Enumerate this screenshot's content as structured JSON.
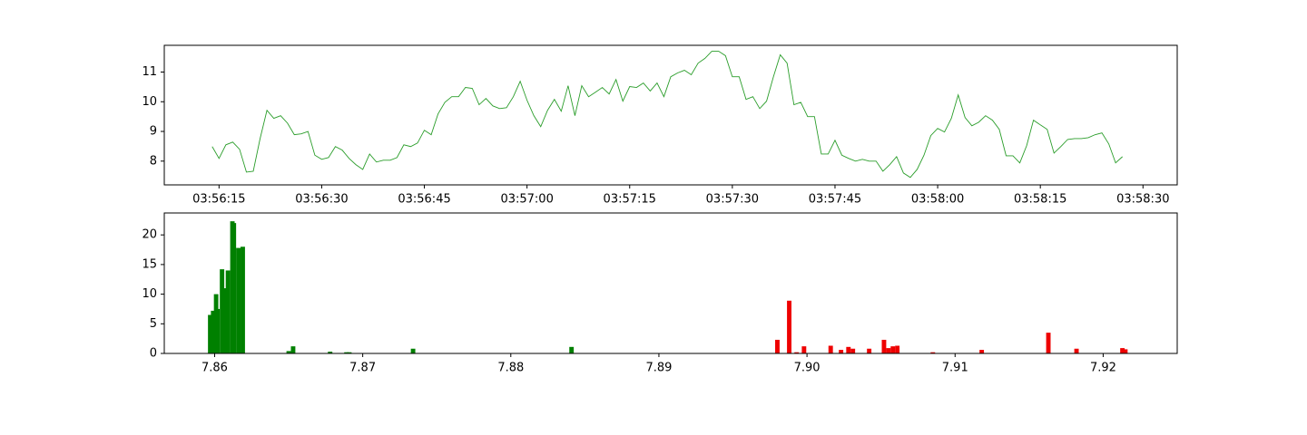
{
  "chart_data": [
    {
      "type": "line",
      "x": [
        "03:56:14",
        "03:56:15",
        "03:56:16",
        "03:56:17",
        "03:56:18",
        "03:56:19",
        "03:56:20",
        "03:56:21",
        "03:56:22",
        "03:56:23",
        "03:56:24",
        "03:56:25",
        "03:56:26",
        "03:56:27",
        "03:56:28",
        "03:56:29",
        "03:56:30",
        "03:56:31",
        "03:56:32",
        "03:56:33",
        "03:56:34",
        "03:56:35",
        "03:56:36",
        "03:56:37",
        "03:56:38",
        "03:56:39",
        "03:56:40",
        "03:56:41",
        "03:56:42",
        "03:56:43",
        "03:56:44",
        "03:56:45",
        "03:56:46",
        "03:56:47",
        "03:56:48",
        "03:56:49",
        "03:56:50",
        "03:56:51",
        "03:56:52",
        "03:56:53",
        "03:56:54",
        "03:56:55",
        "03:56:56",
        "03:56:57",
        "03:56:58",
        "03:56:59",
        "03:57:00",
        "03:57:01",
        "03:57:02",
        "03:57:03",
        "03:57:04",
        "03:57:05",
        "03:57:06",
        "03:57:07",
        "03:57:08",
        "03:57:09",
        "03:57:10",
        "03:57:11",
        "03:57:12",
        "03:57:13",
        "03:57:14",
        "03:57:15",
        "03:57:16",
        "03:57:17",
        "03:57:18",
        "03:57:19",
        "03:57:20",
        "03:57:21",
        "03:57:22",
        "03:57:23",
        "03:57:24",
        "03:57:25",
        "03:57:26",
        "03:57:27",
        "03:57:28",
        "03:57:29",
        "03:57:30",
        "03:57:31",
        "03:57:32",
        "03:57:33",
        "03:57:34",
        "03:57:35",
        "03:57:36",
        "03:57:37",
        "03:57:38",
        "03:57:39",
        "03:57:40",
        "03:57:41",
        "03:57:42",
        "03:57:43",
        "03:57:44",
        "03:57:45",
        "03:57:46",
        "03:57:47",
        "03:57:48",
        "03:57:49",
        "03:57:50",
        "03:57:51",
        "03:57:52",
        "03:57:53",
        "03:57:54",
        "03:57:55",
        "03:57:56",
        "03:57:57",
        "03:57:58",
        "03:57:59",
        "03:58:00",
        "03:58:01",
        "03:58:02",
        "03:58:03",
        "03:58:04",
        "03:58:05",
        "03:58:06",
        "03:58:07",
        "03:58:08",
        "03:58:09",
        "03:58:10",
        "03:58:11",
        "03:58:12",
        "03:58:13",
        "03:58:14",
        "03:58:15",
        "03:58:16",
        "03:58:17",
        "03:58:18",
        "03:58:19",
        "03:58:20",
        "03:58:21",
        "03:58:22",
        "03:58:23",
        "03:58:24",
        "03:58:25",
        "03:58:26",
        "03:58:27"
      ],
      "series": [
        {
          "color": "#2a9d2a",
          "values": [
            8.49,
            8.09,
            8.55,
            8.64,
            8.4,
            7.63,
            7.66,
            8.76,
            9.71,
            9.44,
            9.53,
            9.28,
            8.89,
            8.92,
            9.0,
            8.2,
            8.06,
            8.12,
            8.49,
            8.37,
            8.09,
            7.88,
            7.72,
            8.24,
            7.97,
            8.03,
            8.03,
            8.12,
            8.55,
            8.49,
            8.61,
            9.04,
            8.89,
            9.59,
            9.98,
            10.17,
            10.17,
            10.48,
            10.45,
            9.9,
            10.11,
            9.86,
            9.77,
            9.8,
            10.17,
            10.69,
            10.05,
            9.53,
            9.16,
            9.71,
            10.08,
            9.68,
            10.54,
            9.53,
            10.54,
            10.17,
            10.32,
            10.48,
            10.26,
            10.75,
            10.02,
            10.51,
            10.48,
            10.63,
            10.36,
            10.63,
            10.17,
            10.84,
            10.97,
            11.06,
            10.91,
            11.3,
            11.46,
            11.7,
            11.7,
            11.55,
            10.84,
            10.84,
            10.08,
            10.17,
            9.77,
            10.02,
            10.84,
            11.58,
            11.3,
            9.9,
            9.98,
            9.5,
            9.5,
            8.24,
            8.24,
            8.7,
            8.2,
            8.09,
            8.0,
            8.06,
            8.0,
            8.0,
            7.66,
            7.88,
            8.15,
            7.6,
            7.45,
            7.72,
            8.2,
            8.86,
            9.1,
            8.98,
            9.44,
            10.23,
            9.47,
            9.19,
            9.31,
            9.53,
            9.38,
            9.07,
            8.18,
            8.18,
            7.94,
            8.52,
            9.38,
            9.22,
            9.07,
            8.27,
            8.49,
            8.73,
            8.76,
            8.76,
            8.79,
            8.89,
            8.95,
            8.58,
            7.94,
            8.15
          ]
        }
      ],
      "xlim": [
        "03:56:07",
        "03:58:35"
      ],
      "xticks": [
        "03:56:15",
        "03:56:30",
        "03:56:45",
        "03:57:00",
        "03:57:15",
        "03:57:30",
        "03:57:45",
        "03:58:00",
        "03:58:15",
        "03:58:30"
      ],
      "ylim": [
        7.2,
        11.9
      ],
      "yticks": [
        8,
        9,
        10,
        11
      ]
    },
    {
      "type": "bar",
      "bar_width": 0.0003,
      "series": [
        {
          "color": "#008000",
          "x": [
            7.8597,
            7.8599,
            7.8601,
            7.8602,
            7.8605,
            7.8607,
            7.8609,
            7.8612,
            7.8613,
            7.8616,
            7.8619,
            7.865,
            7.8653,
            7.8678,
            7.8689,
            7.8691,
            7.8734,
            7.8841
          ],
          "values": [
            6.5,
            7.2,
            10,
            7.5,
            14.2,
            11,
            14,
            22.3,
            22,
            17.8,
            18,
            0.4,
            1.2,
            0.3,
            0.2,
            0.2,
            0.8,
            1.1
          ]
        },
        {
          "color": "#ee0000",
          "x": [
            7.898,
            7.8988,
            7.8993,
            7.8998,
            7.9016,
            7.9023,
            7.9028,
            7.9031,
            7.9042,
            7.9052,
            7.9055,
            7.9058,
            7.9061,
            7.9085,
            7.9118,
            7.9163,
            7.9182,
            7.9213,
            7.9215
          ],
          "values": [
            2.3,
            8.9,
            0.2,
            1.2,
            1.3,
            0.6,
            1.1,
            0.8,
            0.8,
            2.3,
            0.9,
            1.2,
            1.3,
            0.2,
            0.6,
            3.5,
            0.8,
            0.9,
            0.7
          ]
        }
      ],
      "xlim": [
        7.8566,
        7.925
      ],
      "xticks": [
        7.86,
        7.87,
        7.88,
        7.89,
        {
          "value": 7.9,
          "label": "7.90"
        },
        7.91,
        7.92
      ],
      "ylim": [
        0,
        23.7
      ],
      "yticks": [
        0,
        5,
        10,
        15,
        20
      ]
    }
  ]
}
